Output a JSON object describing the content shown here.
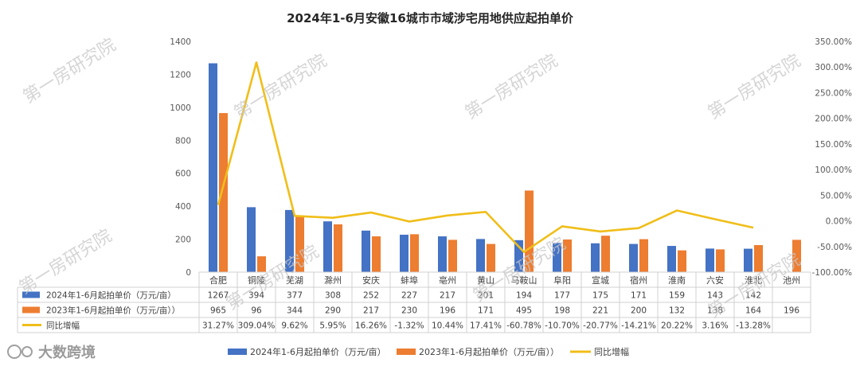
{
  "chart_data": {
    "type": "bar+line",
    "title": "2024年1-6月安徽16城市市域涉宅用地供应起拍单价",
    "categories": [
      "合肥",
      "铜陵",
      "芜湖",
      "滁州",
      "安庆",
      "蚌埠",
      "亳州",
      "黄山",
      "马鞍山",
      "阜阳",
      "宣城",
      "宿州",
      "淮南",
      "六安",
      "淮北",
      "池州"
    ],
    "series": [
      {
        "name": "2024年1-6月起拍单价（万元/亩）",
        "type": "bar",
        "axis": "left",
        "color": "#4472C4",
        "values": [
          1267,
          394,
          377,
          308,
          252,
          227,
          217,
          201,
          194,
          177,
          175,
          171,
          159,
          143,
          142,
          null
        ]
      },
      {
        "name": "2023年1-6月起拍单价（万元/亩））",
        "type": "bar",
        "axis": "left",
        "color": "#ED7D31",
        "values": [
          965,
          96,
          344,
          290,
          217,
          230,
          196,
          171,
          495,
          198,
          221,
          200,
          132,
          138,
          164,
          196
        ]
      },
      {
        "name": "同比增幅",
        "type": "line",
        "axis": "right",
        "color": "#F0BE19",
        "values": [
          31.27,
          309.04,
          9.62,
          5.95,
          16.26,
          -1.32,
          10.44,
          17.41,
          -60.78,
          -10.7,
          -20.77,
          -14.21,
          20.22,
          3.16,
          -13.28,
          null
        ]
      }
    ],
    "table_text": {
      "row0": [
        "1267",
        "394",
        "377",
        "308",
        "252",
        "227",
        "217",
        "201",
        "194",
        "177",
        "175",
        "171",
        "159",
        "143",
        "142",
        ""
      ],
      "row1": [
        "965",
        "96",
        "344",
        "290",
        "217",
        "230",
        "196",
        "171",
        "495",
        "198",
        "221",
        "200",
        "132",
        "138",
        "164",
        "196"
      ],
      "row2": [
        "31.27%",
        "309.04%",
        "9.62%",
        "5.95%",
        "16.26%",
        "-1.32%",
        "10.44%",
        "17.41%",
        "-60.78%",
        "-10.70%",
        "-20.77%",
        "-14.21%",
        "20.22%",
        "3.16%",
        "-13.28%",
        ""
      ]
    },
    "y_left": {
      "min": 0,
      "max": 1400,
      "step": 200,
      "ticks": [
        "0",
        "200",
        "400",
        "600",
        "800",
        "1000",
        "1200",
        "1400"
      ]
    },
    "y_right": {
      "min": -100,
      "max": 350,
      "step": 50,
      "ticks": [
        "-100.00%",
        "-50.00%",
        "0.00%",
        "50.00%",
        "100.00%",
        "150.00%",
        "200.00%",
        "250.00%",
        "300.00%",
        "350.00%"
      ]
    },
    "grid": false,
    "legend_position": "bottom"
  },
  "legend": {
    "bar2024": "2024年1-6月起拍单价（万元/亩）",
    "bar2023": "2023年1-6月起拍单价（万元/亩））",
    "line": "同比增幅"
  },
  "watermark": "第一房研究院",
  "logo": {
    "text": "大数跨境"
  }
}
